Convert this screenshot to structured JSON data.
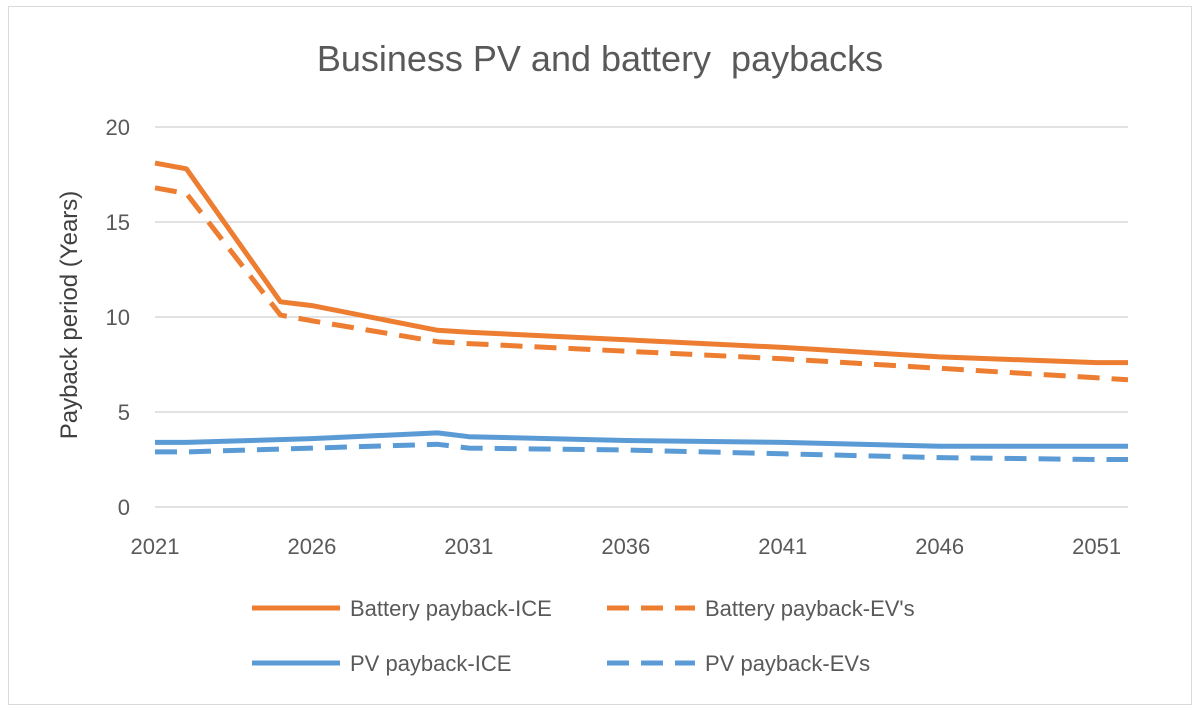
{
  "chart_data": {
    "type": "line",
    "title": "Business PV and battery  paybacks",
    "xlabel": "",
    "ylabel": "Payback period (Years)",
    "xlim": [
      2021,
      2052
    ],
    "ylim": [
      0,
      20
    ],
    "x_ticks": [
      2021,
      2026,
      2031,
      2036,
      2041,
      2046,
      2051
    ],
    "y_ticks": [
      0,
      5,
      10,
      15,
      20
    ],
    "grid": true,
    "legend_position": "bottom",
    "series": [
      {
        "name": "Battery payback-ICE",
        "color": "#ed7d31",
        "dash": "solid",
        "x": [
          2021,
          2022,
          2025,
          2026,
          2030,
          2031,
          2036,
          2041,
          2046,
          2051,
          2052
        ],
        "y": [
          18.1,
          17.8,
          10.8,
          10.6,
          9.3,
          9.2,
          8.8,
          8.4,
          7.9,
          7.6,
          7.6
        ]
      },
      {
        "name": "Battery payback-EV's",
        "color": "#ed7d31",
        "dash": "dashed",
        "x": [
          2021,
          2022,
          2025,
          2026,
          2030,
          2031,
          2036,
          2041,
          2046,
          2051,
          2052
        ],
        "y": [
          16.8,
          16.5,
          10.1,
          9.8,
          8.7,
          8.6,
          8.2,
          7.8,
          7.3,
          6.8,
          6.7
        ]
      },
      {
        "name": "PV payback-ICE",
        "color": "#5b9bd5",
        "dash": "solid",
        "x": [
          2021,
          2022,
          2026,
          2030,
          2031,
          2036,
          2041,
          2046,
          2051,
          2052
        ],
        "y": [
          3.4,
          3.4,
          3.6,
          3.9,
          3.7,
          3.5,
          3.4,
          3.2,
          3.2,
          3.2
        ]
      },
      {
        "name": "PV payback-EVs",
        "color": "#5b9bd5",
        "dash": "dashed",
        "x": [
          2021,
          2022,
          2026,
          2030,
          2031,
          2036,
          2041,
          2046,
          2051,
          2052
        ],
        "y": [
          2.9,
          2.9,
          3.1,
          3.3,
          3.1,
          3.0,
          2.8,
          2.6,
          2.5,
          2.5
        ]
      }
    ]
  }
}
